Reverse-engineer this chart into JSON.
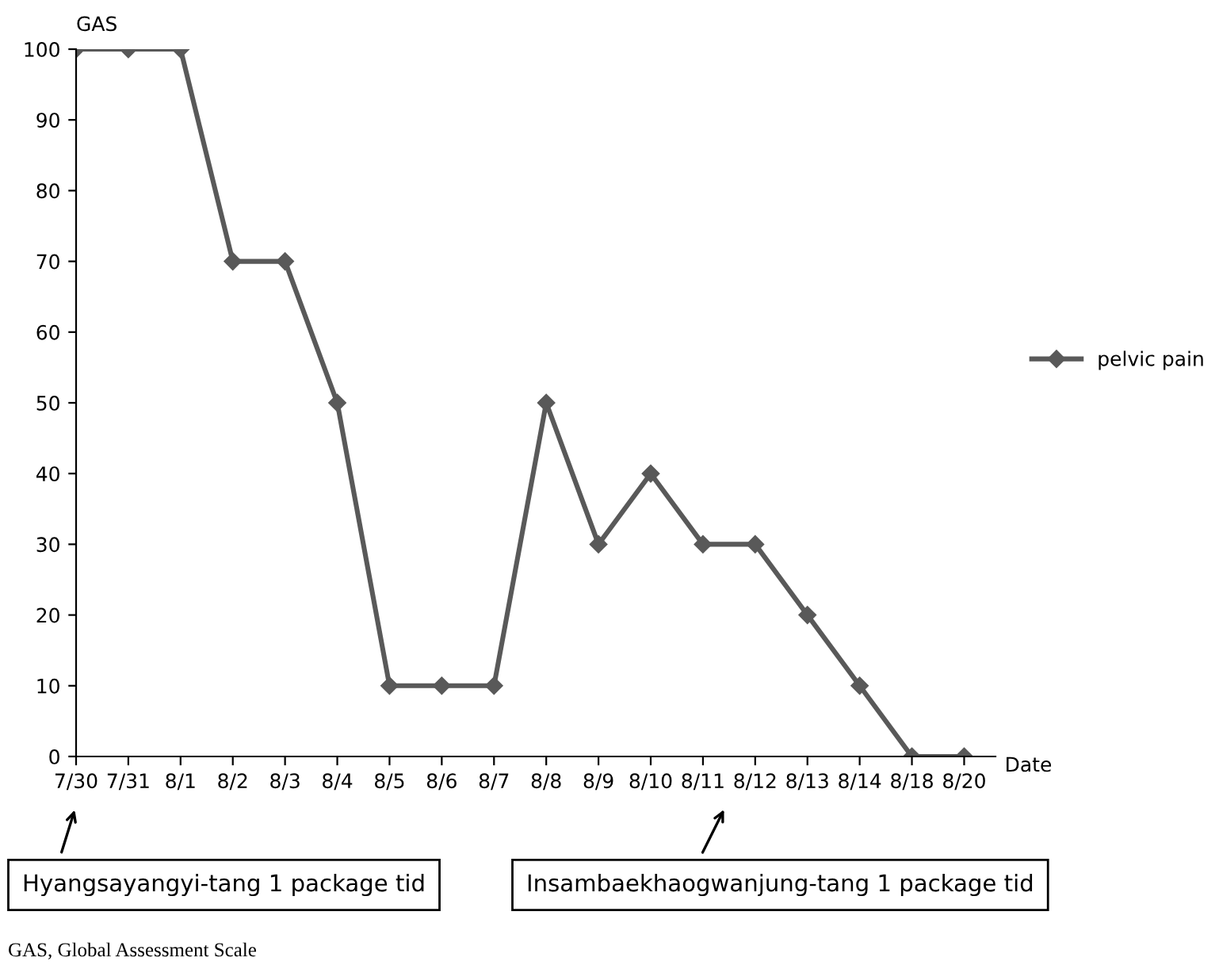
{
  "chart_data": {
    "type": "line",
    "ylabel": "GAS",
    "xlabel": "Date",
    "categories": [
      "7/30",
      "7/31",
      "8/1",
      "8/2",
      "8/3",
      "8/4",
      "8/5",
      "8/6",
      "8/7",
      "8/8",
      "8/9",
      "8/10",
      "8/11",
      "8/12",
      "8/13",
      "8/14",
      "8/18",
      "8/20"
    ],
    "series": [
      {
        "name": "pelvic pain",
        "color": "#595959",
        "values": [
          100,
          100,
          100,
          70,
          70,
          50,
          10,
          10,
          10,
          50,
          30,
          40,
          30,
          30,
          20,
          10,
          0,
          0
        ]
      }
    ],
    "ylim": [
      0,
      100
    ],
    "yticks": [
      0,
      10,
      20,
      30,
      40,
      50,
      60,
      70,
      80,
      90,
      100
    ],
    "marker": "diamond",
    "line_style": "solid",
    "legend": "right",
    "grid": false,
    "annotations": [
      "Hyangsayangyi-tang 1 package tid",
      "Insambaekhaogwanjung-tang 1 package tid",
      "GAS, Global Assessment Scale"
    ]
  }
}
